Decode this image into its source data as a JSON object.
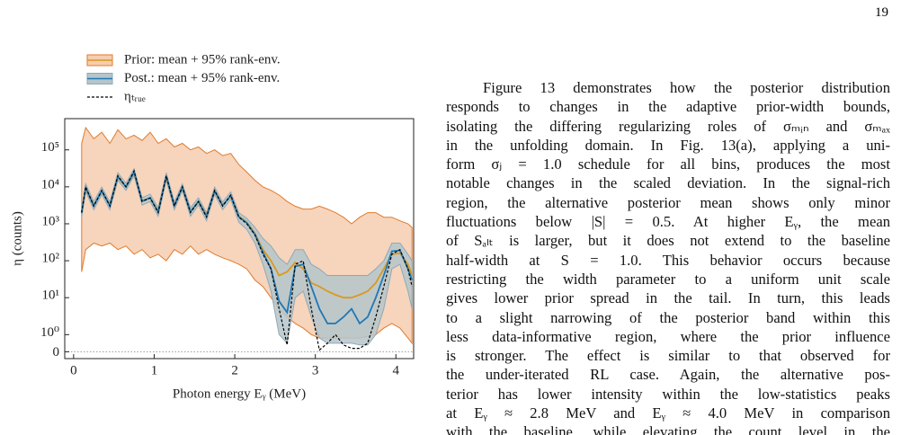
{
  "page_number": "19",
  "chart_data": {
    "type": "line",
    "xlabel": "Photon energy Eᵧ (MeV)",
    "ylabel": "η (counts)",
    "yscale": "symlog",
    "xlim": [
      -0.11,
      4.22
    ],
    "ylim": [
      -0.4,
      700000
    ],
    "xticks": [
      0,
      1,
      2,
      3,
      4
    ],
    "yticks": [
      0,
      {
        "value": 1,
        "label": "10⁰"
      },
      {
        "value": 10,
        "label": "10¹"
      },
      {
        "value": 100,
        "label": "10²"
      },
      {
        "value": 1000,
        "label": "10³"
      },
      {
        "value": 10000,
        "label": "10⁴"
      },
      {
        "value": 100000,
        "label": "10⁵"
      }
    ],
    "x": [
      0.1,
      0.15,
      0.25,
      0.35,
      0.45,
      0.55,
      0.65,
      0.75,
      0.85,
      0.95,
      1.05,
      1.15,
      1.25,
      1.35,
      1.45,
      1.55,
      1.65,
      1.75,
      1.85,
      1.95,
      2.05,
      2.15,
      2.25,
      2.35,
      2.45,
      2.55,
      2.65,
      2.75,
      2.85,
      2.95,
      3.05,
      3.15,
      3.25,
      3.35,
      3.45,
      3.55,
      3.65,
      3.75,
      3.85,
      3.95,
      4.05,
      4.15,
      4.2
    ],
    "series": [
      {
        "name": "Prior: mean + 95% rank-env.",
        "color": "#d99a1e",
        "band_color": "#f6cdb0",
        "band_edge": "#e07b2a",
        "values": [
          2000,
          9000,
          3200,
          7500,
          3200,
          18000,
          10000,
          24000,
          4200,
          5000,
          2200,
          18000,
          3200,
          9500,
          2200,
          4000,
          1700,
          7500,
          3200,
          5500,
          1600,
          1100,
          550,
          200,
          100,
          40,
          50,
          90,
          60,
          25,
          20,
          15,
          12,
          10,
          10,
          12,
          15,
          25,
          60,
          150,
          160,
          80,
          40
        ],
        "upper": [
          150000,
          400000,
          200000,
          300000,
          150000,
          350000,
          200000,
          250000,
          180000,
          300000,
          150000,
          200000,
          120000,
          150000,
          100000,
          120000,
          80000,
          100000,
          70000,
          80000,
          40000,
          25000,
          15000,
          10000,
          8000,
          6000,
          4000,
          3000,
          2500,
          2500,
          3000,
          2500,
          2000,
          1500,
          1000,
          1500,
          2000,
          2000,
          1500,
          1500,
          1200,
          1000,
          800
        ],
        "lower": [
          50,
          200,
          300,
          250,
          300,
          200,
          250,
          150,
          200,
          120,
          150,
          100,
          200,
          150,
          250,
          150,
          200,
          150,
          120,
          100,
          80,
          60,
          30,
          20,
          10,
          5,
          3,
          2,
          1.5,
          1,
          0.8,
          0.8,
          0.8,
          0.8,
          0.8,
          0.8,
          0.9,
          1,
          1.5,
          2,
          1.5,
          0.8,
          0.5
        ]
      },
      {
        "name": "Post.: mean + 95% rank-env.",
        "color": "#1f77b4",
        "band_color": "#b5c5cb",
        "band_edge": "#8fa9b5",
        "values": [
          2000,
          9500,
          3100,
          7800,
          3100,
          19000,
          10000,
          25000,
          4100,
          5000,
          2100,
          19000,
          3100,
          9800,
          2100,
          4000,
          1600,
          7800,
          3100,
          5800,
          1550,
          1050,
          520,
          170,
          60,
          8,
          4,
          70,
          80,
          20,
          5,
          2,
          2,
          3,
          5,
          2,
          3,
          10,
          40,
          180,
          190,
          60,
          30
        ],
        "upper": [
          2600,
          12000,
          4000,
          9800,
          3900,
          24000,
          12500,
          31000,
          5100,
          6300,
          2700,
          24000,
          3900,
          12000,
          2700,
          5000,
          2000,
          9800,
          3900,
          7300,
          2000,
          1400,
          800,
          400,
          250,
          120,
          80,
          200,
          200,
          80,
          60,
          40,
          40,
          40,
          40,
          40,
          40,
          60,
          100,
          300,
          300,
          150,
          100
        ],
        "lower": [
          1500,
          7500,
          2400,
          6200,
          2400,
          15000,
          8000,
          20000,
          3200,
          4000,
          1600,
          15000,
          2400,
          7800,
          1600,
          3200,
          1200,
          6200,
          2400,
          4600,
          1100,
          700,
          300,
          80,
          15,
          1,
          0.5,
          10,
          15,
          3,
          0.8,
          0.5,
          0.5,
          0.5,
          0.5,
          0.4,
          0.4,
          1,
          5,
          60,
          80,
          15,
          5
        ]
      },
      {
        "name": "ηₜᵣᵤₑ",
        "color": "#000000",
        "dashed": true,
        "values": [
          2000,
          10000,
          3000,
          8000,
          3000,
          20000,
          10000,
          27000,
          4000,
          5000,
          2000,
          20000,
          3000,
          10000,
          2000,
          4000,
          1500,
          8000,
          3000,
          6000,
          1500,
          1000,
          500,
          150,
          60,
          5,
          0.4,
          80,
          100,
          5,
          0.1,
          0.5,
          1,
          0.4,
          0.2,
          0.2,
          0.5,
          3,
          20,
          150,
          200,
          60,
          20
        ]
      }
    ]
  },
  "paragraph": [
    "Figure 13 demonstrates how the posterior distribution",
    "responds to changes in the adaptive prior-width bounds,",
    "isolating the differing regularizing roles of σₘᵢₙ and σₘₐₓ",
    "in the unfolding domain. In Fig. 13(a), applying a uni-",
    "form σⱼ = 1.0 schedule for all bins, produces the most",
    "notable changes in the scaled deviation. In the signal-rich",
    "region, the alternative posterior mean shows only minor",
    "fluctuations below |S| = 0.5. At higher Eᵧ, the mean",
    "of Sₐₗₜ is larger, but it does not extend to the baseline",
    "half-width at S = 1.0. This behavior occurs because",
    "restricting the width parameter to a uniform unit scale",
    "gives lower prior spread in the tail. In turn, this leads",
    "to a slight narrowing of the posterior band within this",
    "less data-informative region, where the prior influence",
    "is stronger. The effect is similar to that observed for",
    "the under-iterated RL case. Again, the alternative pos-",
    "terior has lower intensity within the low-statistics peaks",
    "at Eᵧ ≈ 2.8 MeV and Eᵧ ≈ 4.0 MeV in comparison",
    "with the baseline, while elevating the count level in the"
  ]
}
